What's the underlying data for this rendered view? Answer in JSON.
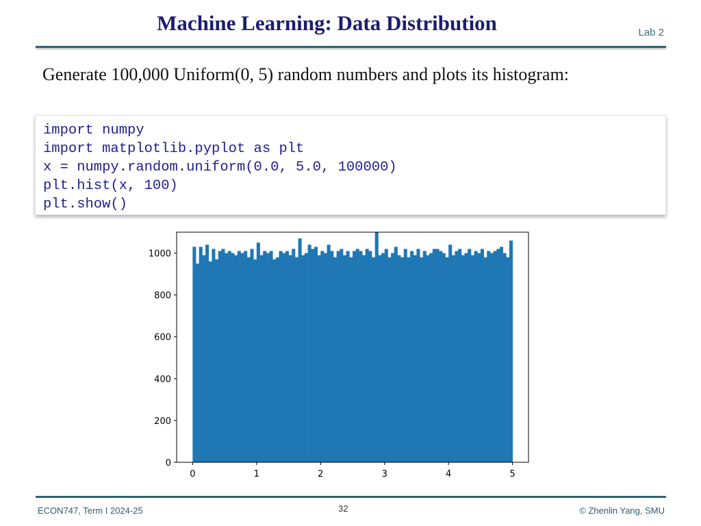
{
  "slide": {
    "title": "Machine Learning: Data Distribution",
    "lab": "Lab 2",
    "intro": "Generate 100,000 Uniform(0, 5) random numbers and plots its histogram:"
  },
  "code": {
    "lines": [
      "import numpy",
      "import matplotlib.pyplot as plt",
      "x = numpy.random.uniform(0.0, 5.0, 100000)",
      "plt.hist(x, 100)",
      "plt.show()"
    ]
  },
  "footer": {
    "left": "ECON747, Term I  2024-25",
    "page": "32",
    "right": "© Zhenlin Yang, SMU"
  },
  "colors": {
    "bar": "#1f77b4",
    "title": "#1c1c6e",
    "code": "#1f1f8e",
    "rule": "#2e6473"
  },
  "chart_data": {
    "type": "bar",
    "title": "",
    "xlabel": "",
    "ylabel": "",
    "xlim": [
      -0.25,
      5.25
    ],
    "ylim": [
      0,
      1100
    ],
    "xticks": [
      "0",
      "1",
      "2",
      "3",
      "4",
      "5"
    ],
    "yticks": [
      "0",
      "200",
      "400",
      "600",
      "800",
      "1000"
    ],
    "bin_start": 0.0,
    "bin_width": 0.05,
    "values": [
      1030,
      950,
      1030,
      990,
      1040,
      960,
      1020,
      970,
      1010,
      1020,
      1000,
      1010,
      1000,
      990,
      1010,
      1000,
      1010,
      980,
      1020,
      970,
      1050,
      990,
      1010,
      1000,
      1010,
      970,
      980,
      1010,
      1000,
      1010,
      990,
      1020,
      980,
      1070,
      990,
      1000,
      1040,
      1020,
      1030,
      990,
      1010,
      1000,
      1040,
      1010,
      980,
      1010,
      1020,
      990,
      1010,
      980,
      1010,
      1020,
      1010,
      990,
      1020,
      1010,
      980,
      1100,
      990,
      1000,
      1020,
      980,
      1000,
      1030,
      990,
      980,
      1020,
      980,
      1010,
      990,
      1020,
      980,
      1010,
      990,
      1000,
      1020,
      1020,
      1010,
      1000,
      980,
      1040,
      990,
      1010,
      1020,
      990,
      1000,
      1020,
      990,
      1010,
      1000,
      1020,
      980,
      1010,
      1000,
      1010,
      1020,
      1030,
      1000,
      980,
      1060
    ]
  }
}
